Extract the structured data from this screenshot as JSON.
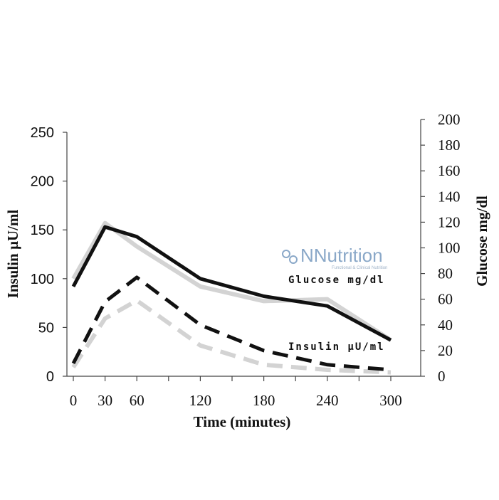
{
  "chart_data": {
    "type": "line",
    "x": [
      0,
      30,
      60,
      120,
      180,
      240,
      300
    ],
    "x_ticks": [
      0,
      30,
      60,
      120,
      180,
      240,
      300
    ],
    "xlabel": "Time (minutes)",
    "ylabel_left": "Insulin µU/ml",
    "ylabel_right": "Glucose mg/dl",
    "ylim_left": [
      0,
      250
    ],
    "ylim_right": [
      0,
      200
    ],
    "yticks_left": [
      0,
      50,
      100,
      150,
      200,
      250
    ],
    "yticks_right": [
      0,
      20,
      40,
      60,
      80,
      100,
      120,
      140,
      160,
      180,
      200
    ],
    "grid": false,
    "legend": "none",
    "series": [
      {
        "axis": "left",
        "style": "solid",
        "color": "#d3d3d3",
        "values": [
          100,
          157,
          133,
          92,
          77,
          79,
          37
        ]
      },
      {
        "axis": "left",
        "style": "solid",
        "color": "#111111",
        "values": [
          92,
          153,
          143,
          100,
          82,
          72,
          37
        ]
      },
      {
        "axis": "right",
        "style": "dashed",
        "color": "#d3d3d3",
        "values": [
          7,
          45,
          59,
          24,
          9,
          5,
          3
        ]
      },
      {
        "axis": "right",
        "style": "dashed",
        "color": "#111111",
        "values": [
          10,
          58,
          77,
          40,
          20,
          9,
          5
        ]
      }
    ],
    "annotations": [
      {
        "text": "Glucose mg/dl",
        "near": "solid lines"
      },
      {
        "text": "Insulin µU/ml",
        "near": "dashed lines"
      }
    ]
  },
  "watermark": {
    "brand": "NNutrition",
    "sub": "Functional & Clinical Nutrition"
  }
}
